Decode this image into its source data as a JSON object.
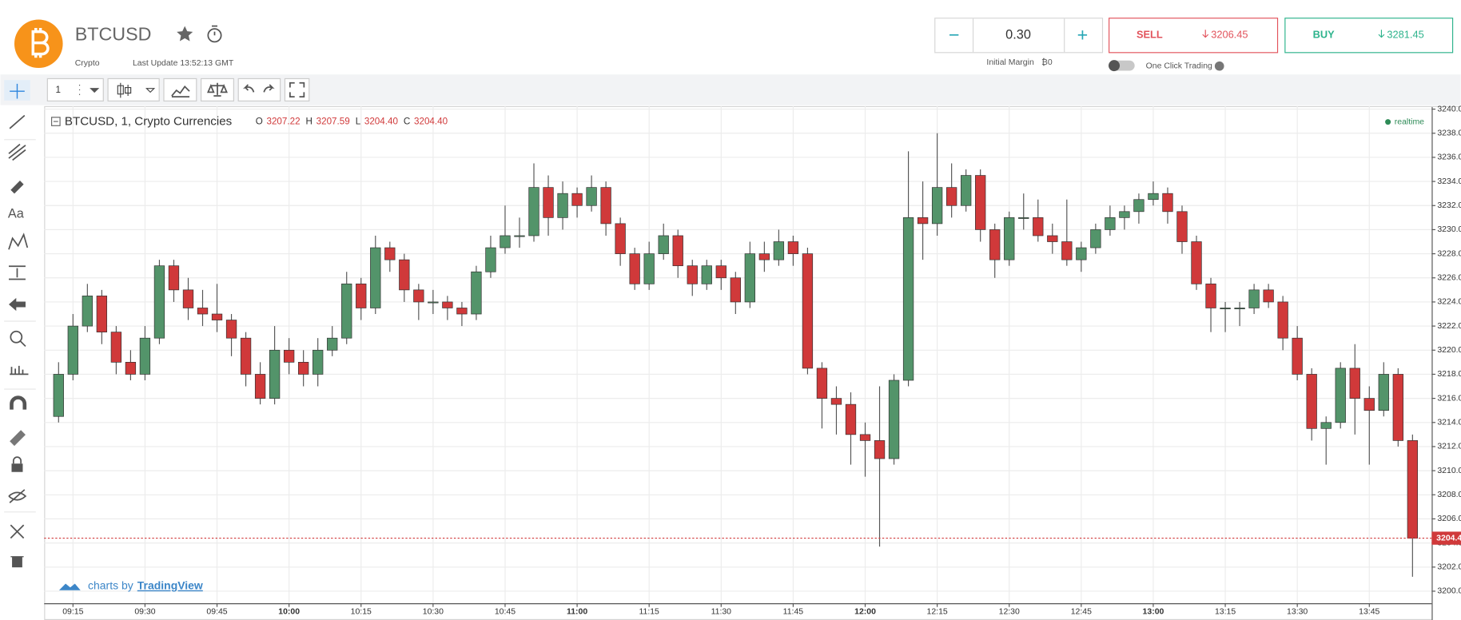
{
  "header": {
    "symbol": "BTCUSD",
    "market": "Crypto",
    "last_update": "Last Update 13:52:13 GMT"
  },
  "trade": {
    "minus": "−",
    "quantity": "0.30",
    "plus": "+",
    "initial_margin": "Initial Margin",
    "margin_value": "₿0",
    "sell": "SELL",
    "sell_price": "3206.45",
    "buy": "BUY",
    "buy_price": "3281.45",
    "one_click": "One Click Trading"
  },
  "toolbar": {
    "interval": "1"
  },
  "branding": {
    "prefix": "charts by",
    "name": "TradingView"
  },
  "chart_data": {
    "type": "candlestick",
    "title": "BTCUSD, 1, Crypto Currencies",
    "ohlc_legend": [
      {
        "key": "O",
        "value": "3207.22"
      },
      {
        "key": "H",
        "value": "3207.59"
      },
      {
        "key": "L",
        "value": "3204.40"
      },
      {
        "key": "C",
        "value": "3204.40"
      }
    ],
    "status": "realtime",
    "up_color": "#53946a",
    "down_color": "#d0393a",
    "grid": true,
    "x": [
      "09:12",
      "09:15",
      "09:18",
      "09:21",
      "09:24",
      "09:27",
      "09:30",
      "09:33",
      "09:36",
      "09:39",
      "09:42",
      "09:45",
      "09:48",
      "09:51",
      "09:54",
      "09:57",
      "10:00",
      "10:03",
      "10:06",
      "10:09",
      "10:12",
      "10:15",
      "10:18",
      "10:21",
      "10:24",
      "10:27",
      "10:30",
      "10:33",
      "10:36",
      "10:39",
      "10:42",
      "10:45",
      "10:48",
      "10:51",
      "10:54",
      "10:57",
      "11:00",
      "11:03",
      "11:06",
      "11:09",
      "11:12",
      "11:15",
      "11:18",
      "11:21",
      "11:24",
      "11:27",
      "11:30",
      "11:33",
      "11:36",
      "11:39",
      "11:42",
      "11:45",
      "11:48",
      "11:51",
      "11:54",
      "11:57",
      "12:00",
      "12:03",
      "12:06",
      "12:09",
      "12:12",
      "12:15",
      "12:18",
      "12:21",
      "12:24",
      "12:27",
      "12:30",
      "12:33",
      "12:36",
      "12:39",
      "12:42",
      "12:45",
      "12:48",
      "12:51",
      "12:54",
      "12:57",
      "13:00",
      "13:03",
      "13:06",
      "13:09",
      "13:12",
      "13:15",
      "13:18",
      "13:21",
      "13:24",
      "13:27",
      "13:30",
      "13:33",
      "13:36",
      "13:39",
      "13:42",
      "13:45",
      "13:48",
      "13:51",
      "13:54"
    ],
    "open": [
      3214.5,
      3218,
      3222,
      3224.5,
      3221.5,
      3219,
      3218,
      3221,
      3227,
      3225,
      3223.5,
      3223,
      3222.5,
      3221,
      3218,
      3216,
      3220,
      3219,
      3218,
      3220,
      3221,
      3225.5,
      3223.5,
      3228.5,
      3227.5,
      3225,
      3224,
      3224,
      3223.5,
      3223,
      3226.5,
      3228.5,
      3229.5,
      3229.5,
      3233.5,
      3231,
      3233,
      3232,
      3233.5,
      3230.5,
      3228,
      3225.5,
      3228,
      3229.5,
      3227,
      3225.5,
      3227,
      3226,
      3224,
      3228,
      3227.5,
      3229,
      3228,
      3218.5,
      3216,
      3215.5,
      3213,
      3212.5,
      3211,
      3217.5,
      3231,
      3230.5,
      3233.5,
      3232,
      3234.5,
      3230,
      3227.5,
      3231,
      3231,
      3229.5,
      3229,
      3227.5,
      3228.5,
      3230,
      3231,
      3231.5,
      3232.5,
      3233,
      3231.5,
      3229,
      3225.5,
      3223.5,
      3223.5,
      3223.5,
      3225,
      3224,
      3221,
      3218,
      3213.5,
      3214,
      3218.5,
      3216,
      3215,
      3218,
      3212.5
    ],
    "high": [
      3219,
      3223,
      3225.5,
      3225,
      3222,
      3220,
      3222,
      3227.5,
      3227.5,
      3226,
      3225,
      3225.5,
      3223,
      3221.5,
      3219,
      3222,
      3221,
      3220,
      3221,
      3222,
      3226.5,
      3226,
      3229.5,
      3229,
      3228,
      3225.5,
      3225,
      3224.5,
      3224,
      3227,
      3229.5,
      3232,
      3231,
      3235.5,
      3234.5,
      3234,
      3233.5,
      3234.5,
      3234,
      3231,
      3228.5,
      3229,
      3230.5,
      3230,
      3227.5,
      3227.5,
      3227.5,
      3226.5,
      3229,
      3229,
      3230,
      3229.5,
      3228.5,
      3219,
      3217,
      3216.5,
      3214,
      3217,
      3218,
      3236.5,
      3234,
      3238,
      3235.5,
      3235,
      3235,
      3230.5,
      3231.5,
      3233,
      3232.5,
      3230.5,
      3232.5,
      3229,
      3230.5,
      3232,
      3232,
      3233,
      3234,
      3233.5,
      3232,
      3229.5,
      3226,
      3224,
      3224,
      3225.5,
      3225.5,
      3224.5,
      3222,
      3218.5,
      3214.5,
      3219,
      3220.5,
      3217,
      3219,
      3218.5,
      3213
    ],
    "low": [
      3214,
      3217.5,
      3221.5,
      3220.5,
      3218,
      3217.5,
      3217.5,
      3220.5,
      3224,
      3222.5,
      3222,
      3221.5,
      3219.5,
      3217,
      3215.5,
      3215.5,
      3218,
      3217,
      3217,
      3219.5,
      3220.5,
      3222.5,
      3223,
      3226.5,
      3224,
      3222.5,
      3223,
      3222.5,
      3222,
      3222.5,
      3226,
      3228,
      3228.5,
      3229,
      3229.5,
      3230,
      3231,
      3231.5,
      3229.5,
      3227,
      3225,
      3225,
      3227.5,
      3226,
      3224.5,
      3225,
      3225,
      3223,
      3223.5,
      3226.5,
      3227,
      3227,
      3218,
      3213.5,
      3213,
      3210.5,
      3209.5,
      3203.7,
      3210.5,
      3217,
      3227.5,
      3229.5,
      3231,
      3231.5,
      3229,
      3226,
      3227,
      3230,
      3229,
      3228,
      3227,
      3226.5,
      3228,
      3229.5,
      3230,
      3230.5,
      3232,
      3230.5,
      3228,
      3225,
      3221.5,
      3221.5,
      3222,
      3223,
      3223.5,
      3220,
      3217.5,
      3212.5,
      3210.5,
      3213.5,
      3213,
      3210.5,
      3214.5,
      3212,
      3201.2
    ],
    "close": [
      3218,
      3222,
      3224.5,
      3221.5,
      3219,
      3218,
      3221,
      3227,
      3225,
      3223.5,
      3223,
      3222.5,
      3221,
      3218,
      3216,
      3220,
      3219,
      3218,
      3220,
      3221,
      3225.5,
      3223.5,
      3228.5,
      3227.5,
      3225,
      3224,
      3224,
      3223.5,
      3223,
      3226.5,
      3228.5,
      3229.5,
      3229.5,
      3233.5,
      3231,
      3233,
      3232,
      3233.5,
      3230.5,
      3228,
      3225.5,
      3228,
      3229.5,
      3227,
      3225.5,
      3227,
      3226,
      3224,
      3228,
      3227.5,
      3229,
      3228,
      3218.5,
      3216,
      3215.5,
      3213,
      3212.5,
      3211,
      3217.5,
      3231,
      3230.5,
      3233.5,
      3232,
      3234.5,
      3230,
      3227.5,
      3231,
      3231,
      3229.5,
      3229,
      3227.5,
      3228.5,
      3230,
      3231,
      3231.5,
      3232.5,
      3233,
      3231.5,
      3229,
      3225.5,
      3223.5,
      3223.5,
      3223.5,
      3225,
      3224,
      3221,
      3218,
      3213.5,
      3214,
      3218.5,
      3216,
      3215,
      3218,
      3212.5,
      3204.4
    ],
    "xlim": [
      "09:09",
      "13:58"
    ],
    "xticks": [
      "09:15",
      "09:30",
      "09:45",
      "10:00",
      "10:15",
      "10:30",
      "10:45",
      "11:00",
      "11:15",
      "11:30",
      "11:45",
      "12:00",
      "12:15",
      "12:30",
      "12:45",
      "13:00",
      "13:15",
      "13:30",
      "13:45"
    ],
    "ylim": [
      3199,
      3240.25
    ],
    "yticks": [
      {
        "value": 3200,
        "label": "3200.00"
      },
      {
        "value": 3202,
        "label": "3202.00"
      },
      {
        "value": 3204,
        "label": "3204.00"
      },
      {
        "value": 3206,
        "label": "3206.00"
      },
      {
        "value": 3208,
        "label": "3208.00"
      },
      {
        "value": 3210,
        "label": "3210.00"
      },
      {
        "value": 3212,
        "label": "3212.00"
      },
      {
        "value": 3214,
        "label": "3214.00"
      },
      {
        "value": 3216,
        "label": "3216.00"
      },
      {
        "value": 3218,
        "label": "3218.00"
      },
      {
        "value": 3220,
        "label": "3220.00"
      },
      {
        "value": 3222,
        "label": "3222.00"
      },
      {
        "value": 3224,
        "label": "3224.00"
      },
      {
        "value": 3226,
        "label": "3226.00"
      },
      {
        "value": 3228,
        "label": "3228.00"
      },
      {
        "value": 3230,
        "label": "3230.00"
      },
      {
        "value": 3232,
        "label": "3232.00"
      },
      {
        "value": 3234,
        "label": "3234.00"
      },
      {
        "value": 3236,
        "label": "3236.00"
      },
      {
        "value": 3238,
        "label": "3238.00"
      },
      {
        "value": 3240,
        "label": "3240.00"
      }
    ],
    "last_price": {
      "value": 3204.4,
      "label": "3204.40"
    },
    "last_price_color": "#d0393a"
  }
}
